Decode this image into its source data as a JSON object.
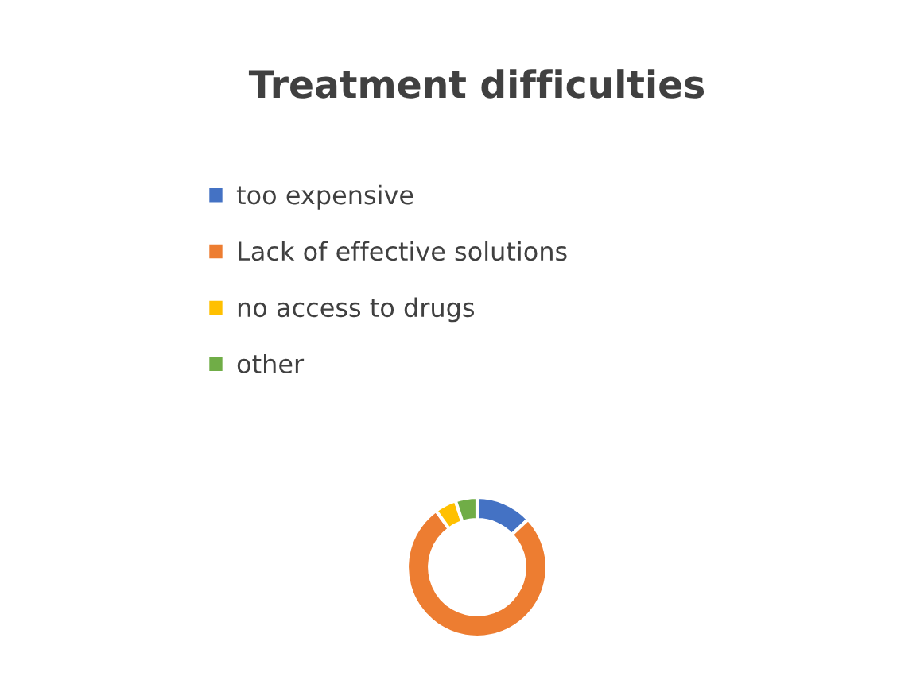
{
  "chart_data": {
    "type": "donut",
    "title": "Treatment difficulties",
    "categories": [
      "too expensive",
      "Lack of effective solutions",
      "no access to drugs",
      "other"
    ],
    "values": [
      13,
      77,
      5,
      5
    ],
    "colors": [
      "#4472c4",
      "#ed7d31",
      "#ffc000",
      "#70ad47"
    ],
    "legend": "top"
  }
}
